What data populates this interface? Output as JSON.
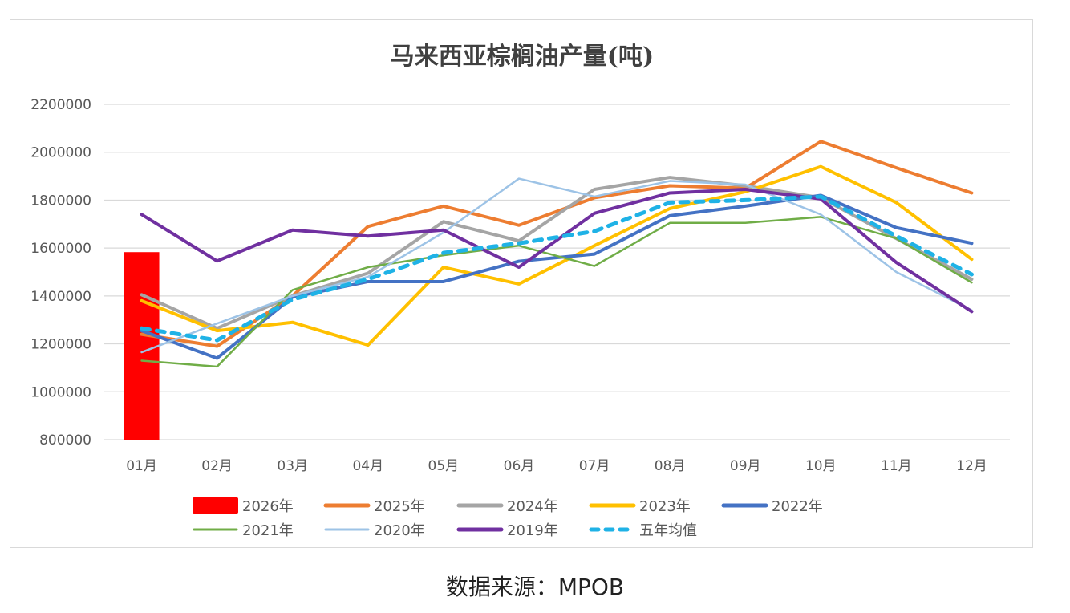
{
  "chart_data": {
    "type": "line",
    "title": "马来西亚棕榈油产量(吨)",
    "xlabel": "",
    "ylabel": "",
    "ylim": [
      800000,
      2200000
    ],
    "yticks": [
      800000,
      1000000,
      1200000,
      1400000,
      1600000,
      1800000,
      2000000,
      2200000
    ],
    "ytick_labels": [
      "800000",
      "1000000",
      "1200000",
      "1400000",
      "1600000",
      "1800000",
      "2000000",
      "2200000"
    ],
    "grid": true,
    "legend_position": "bottom",
    "categories": [
      "01月",
      "02月",
      "03月",
      "04月",
      "05月",
      "06月",
      "07月",
      "08月",
      "09月",
      "10月",
      "11月",
      "12月"
    ],
    "series": [
      {
        "name": "2026年",
        "kind": "bar",
        "color": "#ff0000",
        "values": [
          1583000,
          null,
          null,
          null,
          null,
          null,
          null,
          null,
          null,
          null,
          null,
          null
        ]
      },
      {
        "name": "2025年",
        "kind": "line",
        "color": "#ed7d31",
        "width": 4,
        "values": [
          1240000,
          1190000,
          1400000,
          1690000,
          1775000,
          1695000,
          1810000,
          1860000,
          1850000,
          2045000,
          1935000,
          1830000
        ]
      },
      {
        "name": "2024年",
        "kind": "line",
        "color": "#a5a5a5",
        "width": 4,
        "values": [
          1405000,
          1265000,
          1400000,
          1495000,
          1710000,
          1630000,
          1845000,
          1895000,
          1860000,
          1810000,
          1640000,
          1470000
        ]
      },
      {
        "name": "2023年",
        "kind": "line",
        "color": "#ffc000",
        "width": 4,
        "values": [
          1380000,
          1255000,
          1290000,
          1195000,
          1520000,
          1450000,
          1610000,
          1765000,
          1835000,
          1940000,
          1790000,
          1553000
        ]
      },
      {
        "name": "2022年",
        "kind": "line",
        "color": "#4472c4",
        "width": 4,
        "values": [
          1255000,
          1140000,
          1395000,
          1460000,
          1460000,
          1545000,
          1575000,
          1735000,
          1775000,
          1820000,
          1685000,
          1620000
        ]
      },
      {
        "name": "2021年",
        "kind": "line",
        "color": "#70ad47",
        "width": 2.5,
        "values": [
          1130000,
          1105000,
          1425000,
          1520000,
          1570000,
          1610000,
          1525000,
          1705000,
          1705000,
          1730000,
          1640000,
          1456000
        ]
      },
      {
        "name": "2020年",
        "kind": "line",
        "color": "#9dc3e6",
        "width": 2.5,
        "values": [
          1165000,
          1285000,
          1400000,
          1480000,
          1665000,
          1890000,
          1815000,
          1880000,
          1865000,
          1740000,
          1500000,
          1340000
        ]
      },
      {
        "name": "2019年",
        "kind": "line",
        "color": "#7030a0",
        "width": 4,
        "values": [
          1740000,
          1546000,
          1675000,
          1650000,
          1675000,
          1520000,
          1745000,
          1830000,
          1845000,
          1805000,
          1540000,
          1335000
        ]
      },
      {
        "name": "五年均值",
        "kind": "dashed",
        "color": "#1fb2e6",
        "width": 5,
        "values": [
          1265000,
          1215000,
          1385000,
          1470000,
          1580000,
          1620000,
          1670000,
          1790000,
          1800000,
          1815000,
          1650000,
          1490000
        ]
      }
    ]
  },
  "footer": {
    "source": "数据来源：MPOB"
  }
}
